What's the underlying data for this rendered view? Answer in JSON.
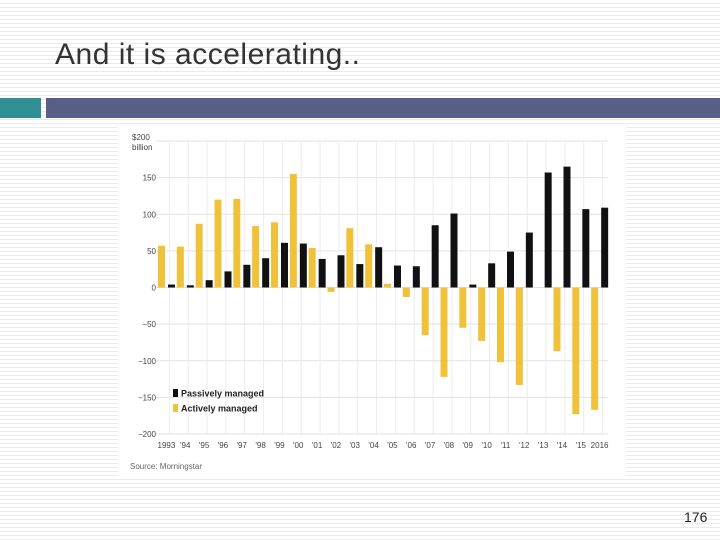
{
  "slide": {
    "title": "And it is accelerating..",
    "page_number": "176",
    "accent_colors": {
      "teal": "#2f8f93",
      "slate": "#585e86"
    }
  },
  "chart_data": {
    "type": "bar",
    "title": "",
    "y_unit_top": "$200",
    "y_unit_sub": "billion",
    "ylim": [
      -200,
      200
    ],
    "y_ticks": [
      {
        "value": 200,
        "label": ""
      },
      {
        "value": 150,
        "label": "150"
      },
      {
        "value": 100,
        "label": "100"
      },
      {
        "value": 50,
        "label": "50"
      },
      {
        "value": 0,
        "label": "0"
      },
      {
        "value": -50,
        "label": "−50"
      },
      {
        "value": -100,
        "label": "−100"
      },
      {
        "value": -150,
        "label": "−150"
      },
      {
        "value": -200,
        "label": "−200"
      }
    ],
    "categories": [
      "1993",
      "'94",
      "'95",
      "'96",
      "'97",
      "'98",
      "'99",
      "'00",
      "'01",
      "'02",
      "'03",
      "'04",
      "'05",
      "'06",
      "'07",
      "'08",
      "'09",
      "'10",
      "'11",
      "'12",
      "'13",
      "'14",
      "'15",
      "2016"
    ],
    "series": [
      {
        "name": "Actively managed",
        "color": "#f0c23a",
        "values": [
          57,
          56,
          87,
          120,
          121,
          84,
          89,
          155,
          54,
          -6,
          81,
          59,
          5,
          -13,
          -65,
          -122,
          -55,
          -73,
          -102,
          -133,
          0,
          -87,
          -173,
          -167
        ]
      },
      {
        "name": "Passively managed",
        "color": "#111111",
        "values": [
          4,
          3,
          10,
          22,
          31,
          40,
          61,
          60,
          39,
          44,
          32,
          55,
          30,
          29,
          85,
          101,
          4,
          33,
          49,
          75,
          157,
          165,
          107,
          109
        ]
      }
    ],
    "legend": [
      "Passively managed",
      "Actively managed"
    ],
    "legend_position": "bottom-left",
    "source": "Source: Morningstar",
    "grid": true
  }
}
